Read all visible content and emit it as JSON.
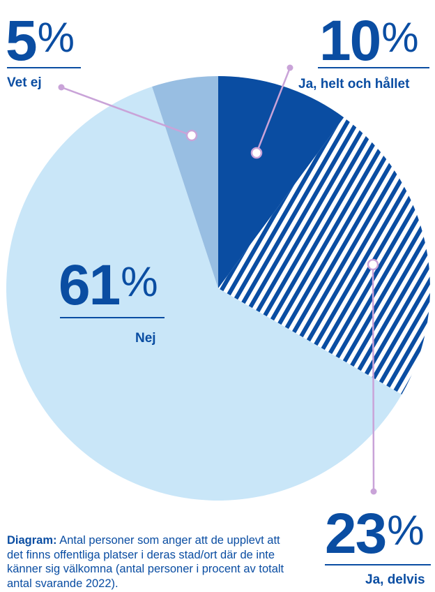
{
  "chart_data": {
    "type": "pie",
    "slices": [
      {
        "label": "Ja, helt och hållet",
        "value": 10,
        "display": "10",
        "color": "#0a4da2",
        "pattern": "solid"
      },
      {
        "label": "Ja, delvis",
        "value": 23,
        "display": "23",
        "color": "#0a4da2",
        "pattern": "diagonal-stripes"
      },
      {
        "label": "Nej",
        "value": 61,
        "display": "61",
        "color": "#c9e6f8",
        "pattern": "solid"
      },
      {
        "label": "Vet ej",
        "value": 5,
        "display": "5",
        "color": "#98bee2",
        "pattern": "solid"
      }
    ],
    "percent_sign": "%",
    "leader_color": "#c9a3d8"
  },
  "caption": {
    "lead": "Diagram:",
    "text": " Antal personer som anger att de upplevt att det finns offentliga platser i deras stad/ort där de inte känner sig välkomna (antal personer i procent av totalt antal svarande 2022)."
  }
}
